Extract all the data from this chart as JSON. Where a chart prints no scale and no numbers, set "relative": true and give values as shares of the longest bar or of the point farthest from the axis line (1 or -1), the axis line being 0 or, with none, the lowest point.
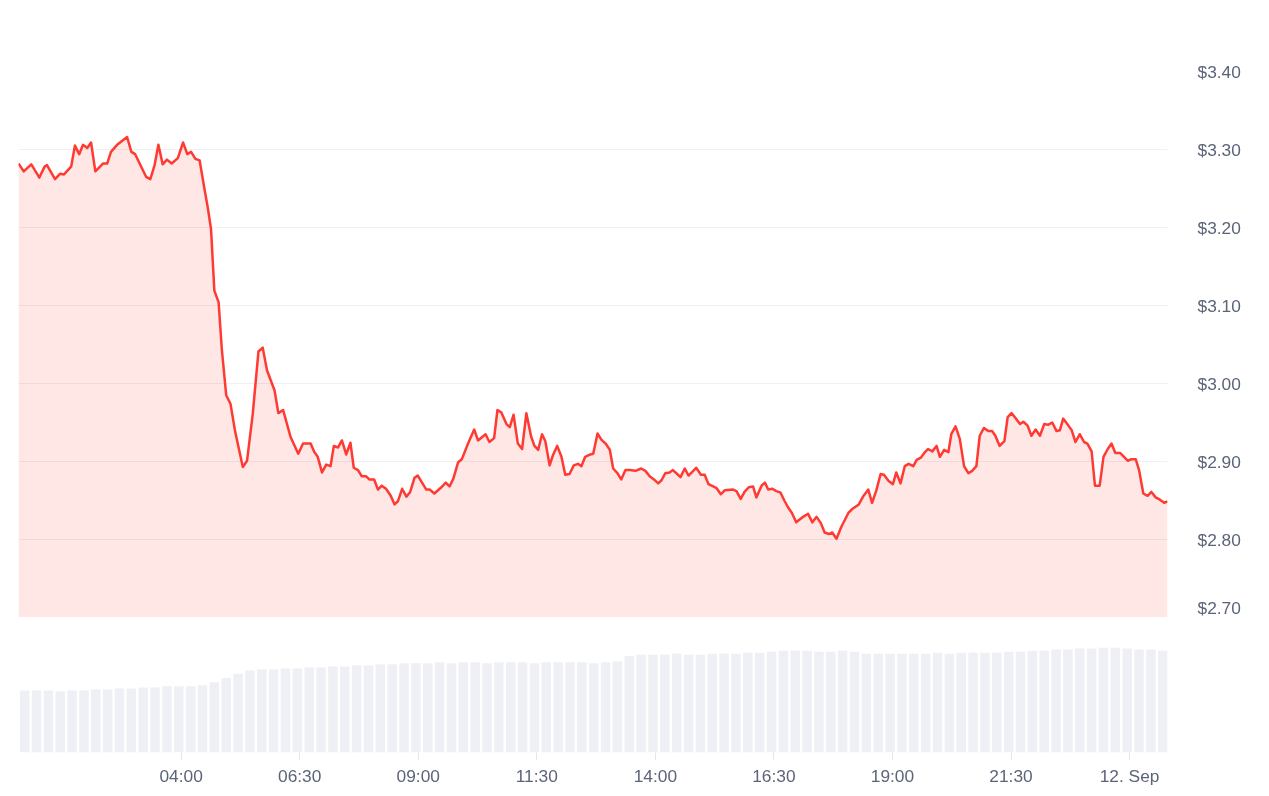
{
  "chart_data": [
    {
      "type": "area",
      "series": [
        {
          "color": "#ff3a33",
          "x": [
            0.57,
            0.68,
            0.84,
            1.01,
            1.12,
            1.17,
            1.34,
            1.45,
            1.53,
            1.68,
            1.76,
            1.85,
            1.93,
            2.02,
            2.1,
            2.19,
            2.35,
            2.44,
            2.52,
            2.65,
            2.86,
            2.95,
            3.03,
            3.26,
            3.35,
            3.44,
            3.52,
            3.61,
            3.7,
            3.8,
            3.93,
            4.04,
            4.13,
            4.21,
            4.3,
            4.39,
            4.49,
            4.56,
            4.63,
            4.7,
            4.79,
            4.86,
            4.95,
            5.04,
            5.14,
            5.3,
            5.39,
            5.51,
            5.63,
            5.72,
            5.81,
            5.97,
            6.05,
            6.15,
            6.31,
            6.47,
            6.57,
            6.73,
            6.81,
            6.88,
            6.97,
            7.06,
            7.15,
            7.22,
            7.31,
            7.39,
            7.48,
            7.57,
            7.64,
            7.73,
            7.81,
            7.9,
            7.97,
            8.07,
            8.15,
            8.23,
            8.32,
            8.42,
            8.5,
            8.57,
            8.66,
            8.75,
            8.83,
            8.92,
            8.99,
            9.17,
            9.24,
            9.34,
            9.47,
            9.58,
            9.66,
            9.74,
            9.84,
            9.92,
            10.05,
            10.18,
            10.26,
            10.42,
            10.5,
            10.6,
            10.67,
            10.75,
            10.86,
            10.93,
            11.01,
            11.1,
            11.19,
            11.28,
            11.38,
            11.45,
            11.53,
            11.61,
            11.68,
            11.77,
            11.84,
            11.93,
            12.02,
            12.1,
            12.19,
            12.28,
            12.37,
            12.44,
            12.52,
            12.63,
            12.69,
            12.78,
            12.86,
            12.95,
            13.04,
            13.11,
            13.2,
            13.28,
            13.37,
            13.46,
            13.58,
            13.7,
            13.79,
            13.88,
            13.97,
            14.06,
            14.13,
            14.21,
            14.3,
            14.37,
            14.46,
            14.53,
            14.62,
            14.7,
            14.8,
            14.86,
            14.96,
            15.04,
            15.12,
            15.22,
            15.29,
            15.38,
            15.46,
            15.64,
            15.71,
            15.8,
            15.88,
            15.97,
            16.06,
            16.13,
            16.24,
            16.31,
            16.38,
            16.47,
            16.55,
            16.64,
            16.72,
            16.8,
            16.88,
            16.97,
            17.09,
            17.22,
            17.31,
            17.4,
            17.49,
            17.57,
            17.66,
            17.73,
            17.82,
            17.92,
            18.07,
            18.15,
            18.29,
            18.38,
            18.49,
            18.57,
            18.66,
            18.75,
            18.82,
            18.92,
            19.01,
            19.08,
            19.17,
            19.26,
            19.34,
            19.44,
            19.51,
            19.6,
            19.67,
            19.75,
            19.84,
            19.93,
            20.0,
            20.09,
            20.18,
            20.24,
            20.33,
            20.42,
            20.51,
            20.6,
            20.68,
            20.77,
            20.84,
            20.93,
            21.02,
            21.1,
            21.17,
            21.26,
            21.36,
            21.43,
            21.51,
            21.59,
            21.69,
            21.76,
            21.85,
            21.93,
            22.02,
            22.11,
            22.2,
            22.28,
            22.37,
            22.46,
            22.53,
            22.6,
            22.71,
            22.78,
            22.86,
            22.95,
            23.04,
            23.11,
            23.2,
            23.27,
            23.37,
            23.45,
            23.54,
            23.62,
            23.7,
            23.8,
            23.96,
            24.04,
            24.13,
            24.2,
            24.29,
            24.38,
            24.46,
            24.55,
            24.64,
            24.73,
            24.8
          ],
          "values": [
            3.282,
            3.272,
            3.281,
            3.264,
            3.278,
            3.28,
            3.262,
            3.269,
            3.268,
            3.278,
            3.305,
            3.294,
            3.306,
            3.302,
            3.309,
            3.272,
            3.282,
            3.282,
            3.297,
            3.306,
            3.316,
            3.297,
            3.294,
            3.265,
            3.262,
            3.28,
            3.306,
            3.281,
            3.287,
            3.282,
            3.289,
            3.309,
            3.294,
            3.297,
            3.288,
            3.286,
            3.25,
            3.226,
            3.198,
            3.119,
            3.104,
            3.042,
            2.985,
            2.974,
            2.938,
            2.893,
            2.901,
            2.961,
            3.041,
            3.046,
            3.017,
            2.991,
            2.962,
            2.966,
            2.931,
            2.91,
            2.923,
            2.923,
            2.912,
            2.906,
            2.886,
            2.896,
            2.894,
            2.92,
            2.918,
            2.927,
            2.909,
            2.924,
            2.892,
            2.889,
            2.881,
            2.881,
            2.877,
            2.877,
            2.864,
            2.869,
            2.865,
            2.856,
            2.845,
            2.849,
            2.865,
            2.855,
            2.861,
            2.879,
            2.882,
            2.864,
            2.864,
            2.859,
            2.866,
            2.873,
            2.868,
            2.878,
            2.899,
            2.903,
            2.923,
            2.941,
            2.927,
            2.935,
            2.925,
            2.93,
            2.966,
            2.963,
            2.948,
            2.944,
            2.96,
            2.923,
            2.916,
            2.962,
            2.932,
            2.92,
            2.915,
            2.935,
            2.926,
            2.895,
            2.908,
            2.92,
            2.906,
            2.883,
            2.884,
            2.895,
            2.897,
            2.894,
            2.906,
            2.909,
            2.91,
            2.936,
            2.928,
            2.923,
            2.915,
            2.891,
            2.885,
            2.877,
            2.889,
            2.889,
            2.888,
            2.891,
            2.888,
            2.881,
            2.877,
            2.872,
            2.876,
            2.885,
            2.886,
            2.889,
            2.884,
            2.88,
            2.891,
            2.882,
            2.888,
            2.892,
            2.883,
            2.883,
            2.871,
            2.868,
            2.866,
            2.858,
            2.863,
            2.864,
            2.862,
            2.852,
            2.861,
            2.867,
            2.868,
            2.854,
            2.869,
            2.873,
            2.864,
            2.865,
            2.862,
            2.86,
            2.85,
            2.841,
            2.834,
            2.822,
            2.828,
            2.833,
            2.822,
            2.829,
            2.821,
            2.809,
            2.807,
            2.809,
            2.801,
            2.816,
            2.834,
            2.839,
            2.845,
            2.855,
            2.864,
            2.847,
            2.863,
            2.884,
            2.883,
            2.875,
            2.871,
            2.886,
            2.872,
            2.894,
            2.897,
            2.894,
            2.902,
            2.905,
            2.911,
            2.916,
            2.913,
            2.92,
            2.906,
            2.915,
            2.912,
            2.935,
            2.945,
            2.929,
            2.894,
            2.885,
            2.888,
            2.894,
            2.933,
            2.943,
            2.939,
            2.939,
            2.933,
            2.92,
            2.926,
            2.957,
            2.962,
            2.956,
            2.948,
            2.951,
            2.946,
            2.933,
            2.941,
            2.933,
            2.948,
            2.947,
            2.95,
            2.939,
            2.94,
            2.955,
            2.946,
            2.94,
            2.925,
            2.935,
            2.925,
            2.923,
            2.913,
            2.869,
            2.869,
            2.906,
            2.916,
            2.923,
            2.911,
            2.911,
            2.901,
            2.903,
            2.903,
            2.889,
            2.859,
            2.856,
            2.861,
            2.854,
            2.851,
            2.847,
            2.849
          ]
        }
      ],
      "xlim": [
        0.57,
        24.8
      ],
      "ylim": [
        2.7,
        3.4
      ],
      "yticks": [
        {
          "value": 2.7,
          "label": "$2.70"
        },
        {
          "value": 2.8,
          "label": "$2.80"
        },
        {
          "value": 2.9,
          "label": "$2.90"
        },
        {
          "value": 3.0,
          "label": "$3.00"
        },
        {
          "value": 3.1,
          "label": "$3.10"
        },
        {
          "value": 3.2,
          "label": "$3.20"
        },
        {
          "value": 3.3,
          "label": "$3.30"
        },
        {
          "value": 3.4,
          "label": "$3.40"
        }
      ],
      "grid": "y",
      "tick_labels": "y"
    },
    {
      "type": "bar",
      "relative": true,
      "series": [
        {
          "color": "#eff0f5",
          "x": [
            0.7,
            0.95,
            1.2,
            1.45,
            1.7,
            1.95,
            2.2,
            2.45,
            2.7,
            2.95,
            3.2,
            3.45,
            3.7,
            3.95,
            4.2,
            4.45,
            4.7,
            4.95,
            5.2,
            5.45,
            5.7,
            5.95,
            6.2,
            6.45,
            6.7,
            6.95,
            7.2,
            7.45,
            7.7,
            7.95,
            8.2,
            8.45,
            8.7,
            8.95,
            9.2,
            9.45,
            9.7,
            9.95,
            10.2,
            10.45,
            10.7,
            10.95,
            11.2,
            11.45,
            11.7,
            11.95,
            12.2,
            12.45,
            12.7,
            12.95,
            13.2,
            13.45,
            13.7,
            13.95,
            14.2,
            14.45,
            14.7,
            14.95,
            15.2,
            15.45,
            15.7,
            15.95,
            16.2,
            16.45,
            16.7,
            16.95,
            17.2,
            17.45,
            17.7,
            17.95,
            18.2,
            18.45,
            18.7,
            18.95,
            19.2,
            19.45,
            19.7,
            19.95,
            20.2,
            20.45,
            20.7,
            20.95,
            21.2,
            21.45,
            21.7,
            21.95,
            22.2,
            22.45,
            22.7,
            22.95,
            23.2,
            23.45,
            23.7,
            23.95,
            24.2,
            24.45,
            24.7
          ],
          "values": [
            0.59,
            0.59,
            0.59,
            0.58,
            0.59,
            0.59,
            0.6,
            0.6,
            0.61,
            0.61,
            0.62,
            0.62,
            0.63,
            0.63,
            0.63,
            0.64,
            0.67,
            0.71,
            0.75,
            0.78,
            0.79,
            0.79,
            0.8,
            0.8,
            0.81,
            0.81,
            0.82,
            0.82,
            0.83,
            0.83,
            0.84,
            0.84,
            0.85,
            0.85,
            0.85,
            0.86,
            0.85,
            0.86,
            0.86,
            0.85,
            0.86,
            0.86,
            0.86,
            0.85,
            0.86,
            0.86,
            0.86,
            0.86,
            0.85,
            0.86,
            0.87,
            0.92,
            0.93,
            0.93,
            0.93,
            0.94,
            0.93,
            0.93,
            0.94,
            0.94,
            0.94,
            0.95,
            0.95,
            0.96,
            0.97,
            0.97,
            0.97,
            0.96,
            0.96,
            0.97,
            0.96,
            0.94,
            0.94,
            0.94,
            0.94,
            0.94,
            0.94,
            0.95,
            0.94,
            0.95,
            0.95,
            0.95,
            0.95,
            0.96,
            0.96,
            0.97,
            0.97,
            0.98,
            0.98,
            0.99,
            0.99,
            1.0,
            1.0,
            0.99,
            0.98,
            0.98,
            0.97
          ]
        }
      ],
      "xlim": [
        0.57,
        24.8
      ],
      "xticks": [
        {
          "value": 4,
          "label": "04:00"
        },
        {
          "value": 6.5,
          "label": "06:30"
        },
        {
          "value": 9,
          "label": "09:00"
        },
        {
          "value": 11.5,
          "label": "11:30"
        },
        {
          "value": 14,
          "label": "14:00"
        },
        {
          "value": 16.5,
          "label": "16:30"
        },
        {
          "value": 19,
          "label": "19:00"
        },
        {
          "value": 21.5,
          "label": "21:30"
        },
        {
          "value": 24,
          "label": "12. Sep"
        }
      ],
      "tick_labels": "x"
    }
  ]
}
